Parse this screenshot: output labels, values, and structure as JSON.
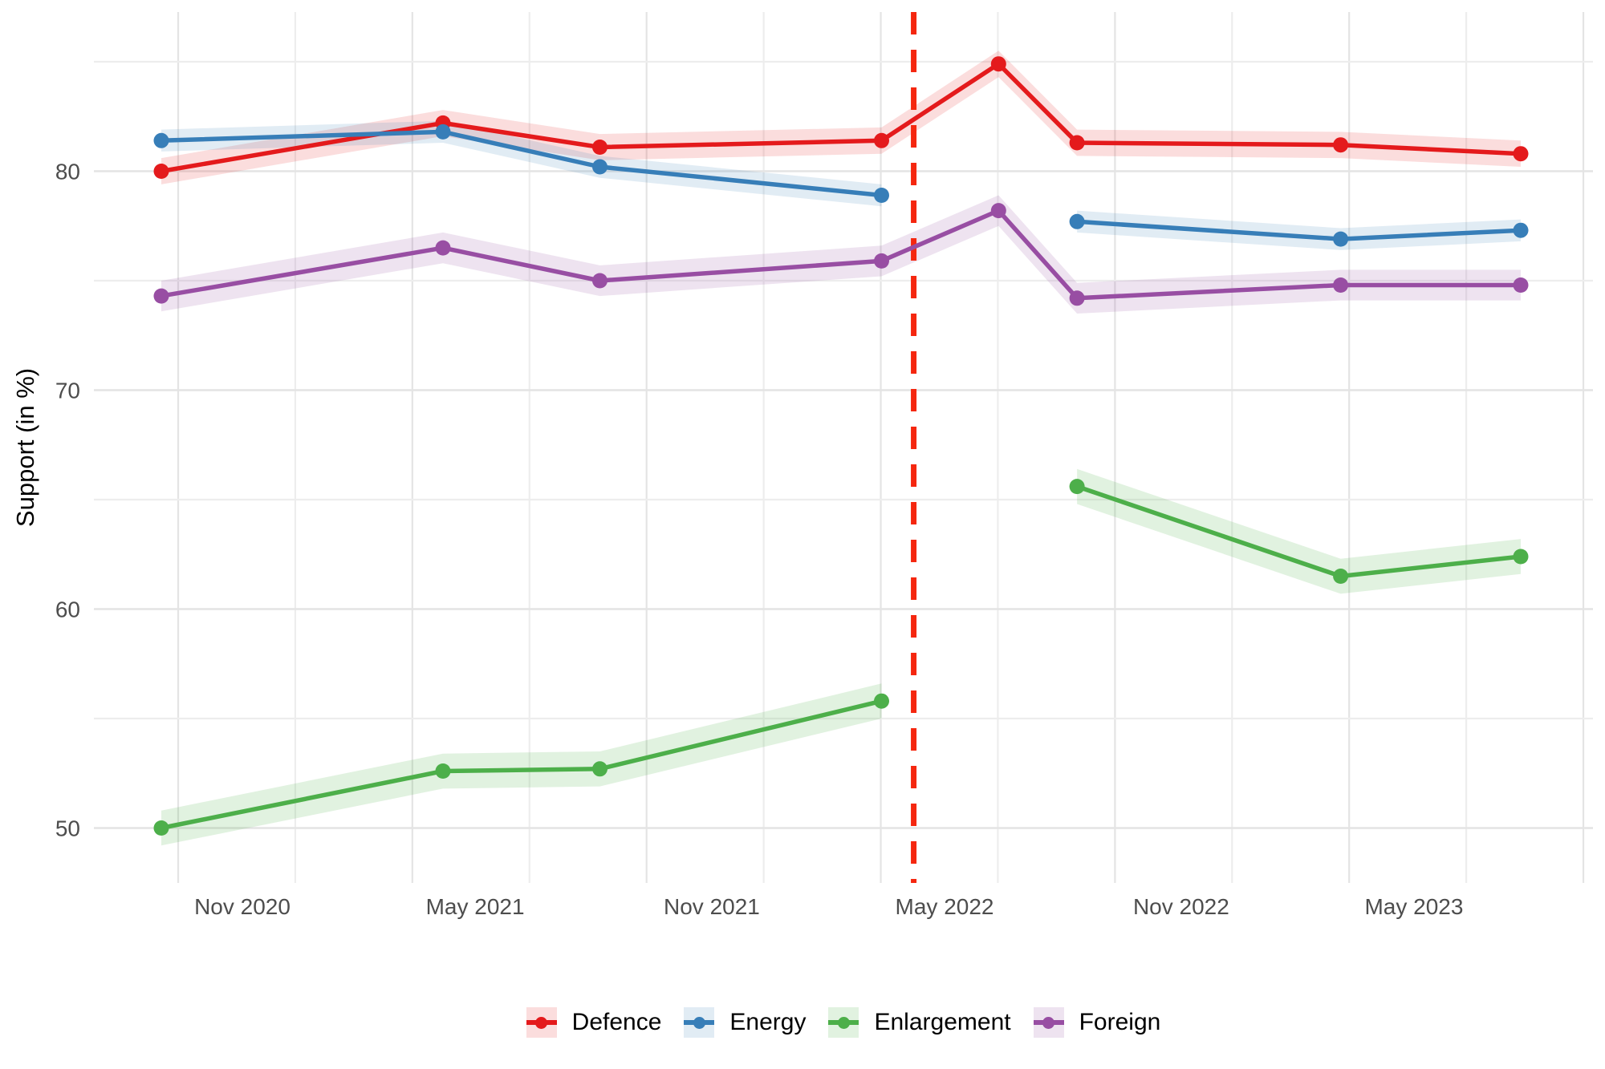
{
  "chart_data": {
    "type": "line",
    "title": "",
    "xlabel": "",
    "ylabel": "Support (in %)",
    "grid": true,
    "legend_position": "bottom",
    "ylim": [
      47.5,
      87.3
    ],
    "xlim": [
      "2020-07-08",
      "2023-09-16"
    ],
    "y_ticks": [
      80,
      70,
      60,
      50
    ],
    "y_minor_gridlines": [
      85,
      75,
      65,
      55
    ],
    "x_ticks": [
      {
        "date": "2020-11-01",
        "label": "Nov 2020"
      },
      {
        "date": "2021-05-01",
        "label": "May 2021"
      },
      {
        "date": "2021-11-01",
        "label": "Nov 2021"
      },
      {
        "date": "2022-05-01",
        "label": "May 2022"
      },
      {
        "date": "2022-11-01",
        "label": "Nov 2022"
      },
      {
        "date": "2023-05-01",
        "label": "May 2023"
      }
    ],
    "x": [
      "2020-08-30",
      "2021-04-06",
      "2021-08-06",
      "2022-03-13",
      "2022-06-12",
      "2022-08-12",
      "2023-03-05",
      "2023-07-23"
    ],
    "series": [
      {
        "name": "Defence",
        "color": "#e41a1c",
        "band_color": "rgba(228,26,28,0.15)",
        "ci_halfwidth": 0.6,
        "values": [
          80.0,
          82.2,
          81.1,
          81.4,
          84.9,
          81.3,
          81.2,
          80.8
        ]
      },
      {
        "name": "Energy",
        "color": "#377eb8",
        "band_color": "rgba(55,126,184,0.15)",
        "ci_halfwidth": 0.5,
        "values": [
          81.4,
          81.8,
          80.2,
          78.9,
          null,
          77.7,
          76.9,
          77.3
        ]
      },
      {
        "name": "Enlargement",
        "color": "#4daf4a",
        "band_color": "rgba(77,175,74,0.17)",
        "ci_halfwidth": 0.8,
        "values": [
          50.0,
          52.6,
          52.7,
          55.8,
          null,
          65.6,
          61.5,
          62.4
        ]
      },
      {
        "name": "Foreign",
        "color": "#984ea3",
        "band_color": "rgba(152,78,163,0.16)",
        "ci_halfwidth": 0.7,
        "values": [
          74.3,
          76.5,
          75.0,
          75.9,
          78.2,
          74.2,
          74.8,
          74.8
        ]
      }
    ],
    "vline": {
      "date": "2022-04-07",
      "color": "#f5270f",
      "style": "dashed"
    }
  }
}
